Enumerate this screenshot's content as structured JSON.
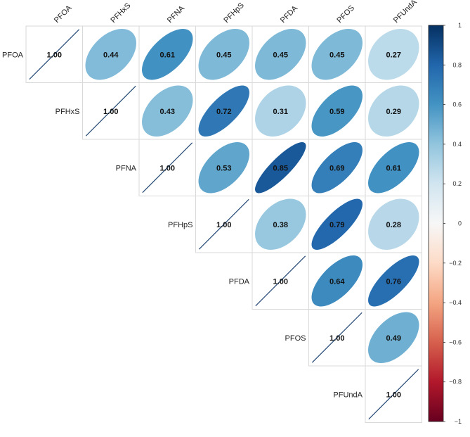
{
  "chart_data": {
    "type": "heatmap",
    "style": "upper-triangle correlation matrix, ellipse glyphs with numeric coefficients",
    "variables": [
      "PFOA",
      "PFHxS",
      "PFNA",
      "PFHpS",
      "PFDA",
      "PFOS",
      "PFUndA"
    ],
    "matrix": [
      [
        1.0,
        0.44,
        0.61,
        0.45,
        0.45,
        0.45,
        0.27
      ],
      [
        0.44,
        1.0,
        0.43,
        0.72,
        0.31,
        0.59,
        0.29
      ],
      [
        0.61,
        0.43,
        1.0,
        0.53,
        0.85,
        0.69,
        0.61
      ],
      [
        0.45,
        0.72,
        0.53,
        1.0,
        0.38,
        0.79,
        0.28
      ],
      [
        0.45,
        0.31,
        0.85,
        0.38,
        1.0,
        0.64,
        0.76
      ],
      [
        0.45,
        0.59,
        0.69,
        0.79,
        0.64,
        1.0,
        0.49
      ],
      [
        0.27,
        0.29,
        0.61,
        0.28,
        0.76,
        0.49,
        1.0
      ]
    ],
    "value_format": "2 decimals",
    "legend": {
      "placement": "right",
      "range": [
        -1,
        1
      ],
      "ticks": [
        "1",
        "0.8",
        "0.6",
        "0.4",
        "0.2",
        "0",
        "−0.2",
        "−0.4",
        "−0.6",
        "−0.8",
        "−1"
      ],
      "colors": {
        "negative_end": "#67001F",
        "neutral": "#F7F7F7",
        "positive_end": "#053061"
      }
    },
    "diagonal_line_color": "#2B4F7A",
    "grid": true
  }
}
